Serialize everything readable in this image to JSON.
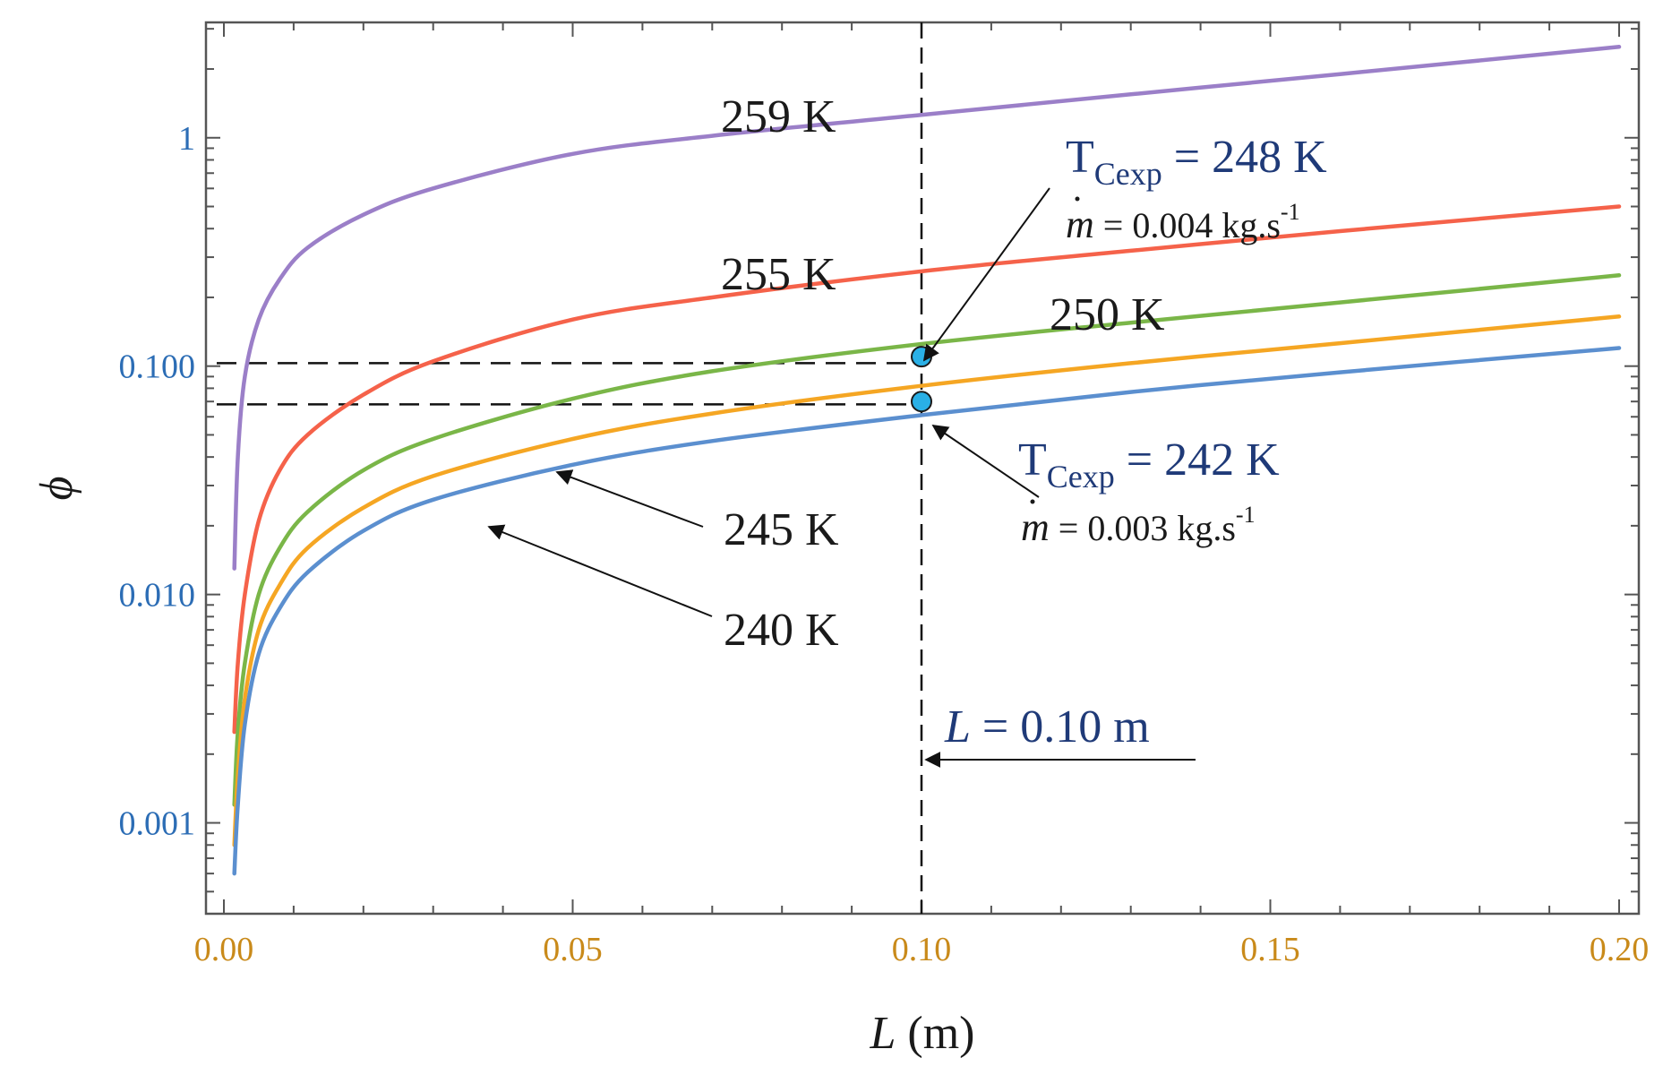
{
  "chart_data": {
    "type": "line",
    "title": "",
    "xlabel": "L (m)",
    "xlabel_var": "L",
    "xlabel_unit": " (m)",
    "ylabel": "ϕ",
    "yscale": "log",
    "xlim": [
      0,
      0.2
    ],
    "ylim": [
      0.0004,
      3.2
    ],
    "x_ticks": [
      0.0,
      0.05,
      0.1,
      0.15,
      0.2
    ],
    "x_tick_labels": [
      "0.00",
      "0.05",
      "0.10",
      "0.15",
      "0.20"
    ],
    "y_ticks": [
      0.001,
      0.01,
      0.1,
      1
    ],
    "y_tick_labels": [
      "0.001",
      "0.010",
      "0.100",
      "1"
    ],
    "series": [
      {
        "name": "259 K",
        "color": "#9b7fc8",
        "x": [
          0.0015,
          0.002,
          0.003,
          0.005,
          0.008,
          0.012,
          0.02,
          0.03,
          0.05,
          0.07,
          0.1,
          0.13,
          0.16,
          0.2
        ],
        "values": [
          0.013,
          0.04,
          0.09,
          0.16,
          0.24,
          0.33,
          0.46,
          0.6,
          0.85,
          1.02,
          1.26,
          1.55,
          1.9,
          2.5
        ]
      },
      {
        "name": "255 K",
        "color": "#f5624a",
        "x": [
          0.0015,
          0.002,
          0.003,
          0.005,
          0.008,
          0.012,
          0.02,
          0.03,
          0.05,
          0.07,
          0.1,
          0.13,
          0.16,
          0.2
        ],
        "values": [
          0.0025,
          0.005,
          0.01,
          0.021,
          0.035,
          0.05,
          0.075,
          0.105,
          0.16,
          0.2,
          0.26,
          0.32,
          0.39,
          0.5
        ]
      },
      {
        "name": "250 K",
        "color": "#7ab648",
        "x": [
          0.0015,
          0.002,
          0.003,
          0.005,
          0.008,
          0.012,
          0.02,
          0.03,
          0.05,
          0.07,
          0.1,
          0.13,
          0.16,
          0.2
        ],
        "values": [
          0.0012,
          0.0025,
          0.005,
          0.01,
          0.016,
          0.023,
          0.035,
          0.048,
          0.072,
          0.095,
          0.125,
          0.155,
          0.19,
          0.25
        ]
      },
      {
        "name": "245 K",
        "color": "#f5a623",
        "x": [
          0.0015,
          0.002,
          0.003,
          0.005,
          0.008,
          0.012,
          0.02,
          0.03,
          0.05,
          0.07,
          0.1,
          0.13,
          0.16,
          0.2
        ],
        "values": [
          0.0008,
          0.0016,
          0.0035,
          0.007,
          0.011,
          0.016,
          0.024,
          0.033,
          0.048,
          0.062,
          0.082,
          0.103,
          0.126,
          0.165
        ]
      },
      {
        "name": "240 K",
        "color": "#5b8fcf",
        "x": [
          0.0015,
          0.002,
          0.003,
          0.005,
          0.008,
          0.012,
          0.02,
          0.03,
          0.05,
          0.07,
          0.1,
          0.13,
          0.16,
          0.2
        ],
        "values": [
          0.0006,
          0.0012,
          0.0027,
          0.0055,
          0.0087,
          0.0125,
          0.019,
          0.026,
          0.037,
          0.047,
          0.061,
          0.077,
          0.094,
          0.12
        ]
      }
    ],
    "curve_labels": [
      "259 K",
      "255 K",
      "250 K",
      "245 K",
      "240 K"
    ],
    "markers": [
      {
        "x": 0.1,
        "y": 0.11,
        "color": "#2ab0e6"
      },
      {
        "x": 0.1,
        "y": 0.07,
        "color": "#2ab0e6"
      }
    ],
    "reference_lines": {
      "vertical_x": 0.1,
      "horizontal_y": [
        0.103,
        0.068
      ]
    },
    "annotations": {
      "tcexp_upper": {
        "prefix": "T",
        "subscript": "Cexp",
        "suffix": " = 248 K"
      },
      "flow_upper": {
        "symbol": "m",
        "text": " = 0.004 kg.s",
        "exponent": "-1"
      },
      "tcexp_lower": {
        "prefix": "T",
        "subscript": "Cexp",
        "suffix": " = 242 K"
      },
      "flow_lower": {
        "symbol": "m",
        "text": " = 0.003 kg.s",
        "exponent": "-1"
      },
      "length": {
        "variable": "L",
        "text": " = 0.10 m"
      }
    },
    "colors": {
      "tick_x": "#c98a1a",
      "tick_y": "#2c6db5",
      "axis": "#555555",
      "grid": "#888888",
      "annotation": "#1f3a78"
    }
  }
}
